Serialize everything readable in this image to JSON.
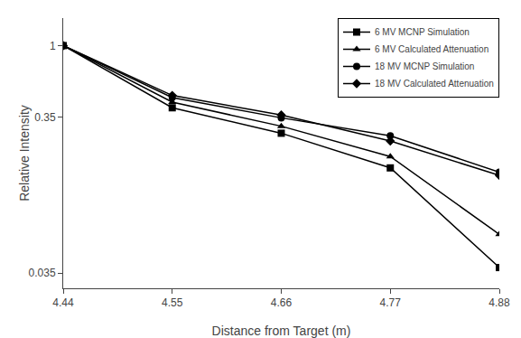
{
  "chart_data": {
    "type": "line",
    "xlabel": "Distance from Target (m)",
    "ylabel": "Relative Intensity",
    "x": [
      4.44,
      4.55,
      4.66,
      4.77,
      4.88
    ],
    "series": [
      {
        "name": "6 MV MCNP Simulation",
        "marker": "square",
        "line_style": "solid",
        "values": [
          1.0,
          0.4,
          0.275,
          0.165,
          0.038
        ]
      },
      {
        "name": "6 MV Calculated Attenuation",
        "marker": "triangle",
        "line_style": "solid",
        "values": [
          1.0,
          0.435,
          0.305,
          0.195,
          0.062
        ]
      },
      {
        "name": "18 MV MCNP Simulation",
        "marker": "circle",
        "line_style": "solid",
        "values": [
          1.0,
          0.465,
          0.345,
          0.265,
          0.155
        ]
      },
      {
        "name": "18 MV Calculated Attenuation",
        "marker": "diamond",
        "line_style": "solid",
        "values": [
          1.0,
          0.48,
          0.36,
          0.245,
          0.148
        ]
      }
    ],
    "color": "black",
    "log": "y",
    "xlim": [
      4.44,
      4.88
    ],
    "xticks": [
      4.44,
      4.55,
      4.66,
      4.77,
      4.88
    ],
    "ylim": [
      0.028,
      1.5
    ],
    "yticks": [
      0.035,
      0.35,
      1
    ],
    "grid": false,
    "legend": "upper right"
  }
}
